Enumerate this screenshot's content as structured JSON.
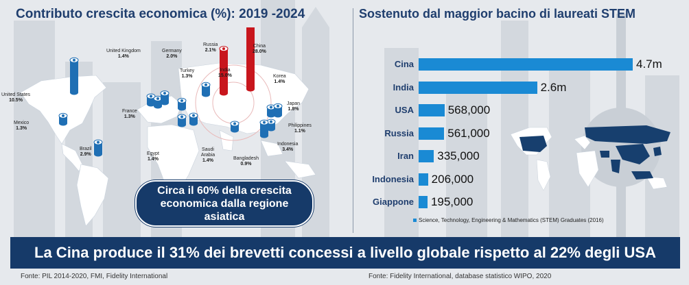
{
  "left_panel": {
    "title": "Contributo crescita economica (%): 2019 -2024",
    "callout": "Circa il 60% della crescita economica dalla regione asiatica",
    "source": "Fonte: PIL 2014-2020, FMI, Fidelity International"
  },
  "right_panel": {
    "title": "Sostenuto dal maggior bacino di laureati STEM",
    "legend": "Science, Technology, Engineering & Mathematics (STEM) Graduates (2016)",
    "source": "Fonte: Fidelity International, database statistico WIPO, 2020"
  },
  "banner": "La Cina produce il 31% dei brevetti concessi a livello globale rispetto al 22% degli USA",
  "chart_data": [
    {
      "type": "bar",
      "title": "Contributo crescita economica (%): 2019 -2024",
      "categories": [
        "United States",
        "Mexico",
        "Brazil",
        "United Kingdom",
        "France",
        "Germany",
        "Egypt",
        "Turkey",
        "Saudi Arabia",
        "Russia",
        "India",
        "China",
        "Bangladesh",
        "Korea",
        "Japan",
        "Philippines",
        "Indonesia"
      ],
      "labels": [
        "United States",
        "Mexico",
        "Brazil",
        "United Kingdom",
        "France",
        "Germany",
        "Egypt",
        "Turkey",
        "Saudi Arabia",
        "Russia",
        "India",
        "China",
        "Bangladesh",
        "Korea",
        "Japan",
        "Philippines",
        "Indonesia"
      ],
      "value_labels": [
        "10.5%",
        "1.3%",
        "2.9%",
        "1.4%",
        "1.3%",
        "2.0%",
        "1.4%",
        "1.3%",
        "1.4%",
        "2.1%",
        "15.0%",
        "28.0%",
        "0.9%",
        "1.4%",
        "1.8%",
        "1.1%",
        "3.4%"
      ],
      "values": [
        10.5,
        1.3,
        2.9,
        1.4,
        1.3,
        2.0,
        1.4,
        1.3,
        1.4,
        2.1,
        15.0,
        28.0,
        0.9,
        1.4,
        1.8,
        1.1,
        3.4
      ],
      "highlight": [
        "India",
        "China"
      ],
      "colors": {
        "default": "#1f6fb4",
        "highlight": "#c8161d"
      }
    },
    {
      "type": "bar",
      "title": "Sostenuto dal maggior bacino di laureati STEM",
      "categories": [
        "Cina",
        "India",
        "USA",
        "Russia",
        "Iran",
        "Indonesia",
        "Giappone"
      ],
      "values": [
        4700000,
        2600000,
        568000,
        561000,
        335000,
        206000,
        195000
      ],
      "value_labels": [
        "4.7m",
        "2.6m",
        "568,000",
        "561,000",
        "335,000",
        "206,000",
        "195,000"
      ],
      "legend": "Science, Technology, Engineering & Mathematics (STEM) Graduates (2016)",
      "color": "#1a8ad4"
    }
  ]
}
